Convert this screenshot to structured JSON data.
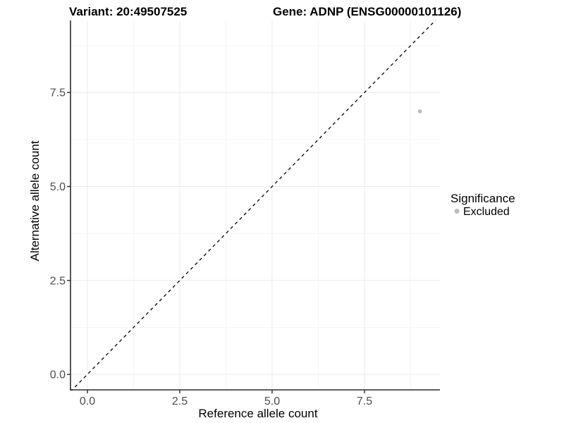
{
  "chart_data": {
    "type": "scatter",
    "title_left": "Variant: 20:49507525",
    "title_right": "Gene: ADNP (ENSG00000101126)",
    "xlabel": "Reference allele count",
    "ylabel": "Alternative allele count",
    "x_ticks": [
      0.0,
      2.5,
      5.0,
      7.5
    ],
    "y_ticks": [
      0.0,
      2.5,
      5.0,
      7.5
    ],
    "x_tick_labels": [
      "0.0",
      "2.5",
      "5.0",
      "7.5"
    ],
    "y_tick_labels": [
      "0.0",
      "2.5",
      "5.0",
      "7.5"
    ],
    "xlim": [
      -0.46,
      9.54
    ],
    "ylim": [
      -0.41,
      9.4
    ],
    "grid": true,
    "points": [
      {
        "x": 9,
        "y": 7,
        "series": "Excluded",
        "color": "#bdbdbd"
      }
    ],
    "reference_line": {
      "kind": "identity y=x",
      "style": "dashed",
      "color": "#000000"
    },
    "legend": {
      "position": "right",
      "title": "Significance",
      "items": [
        {
          "label": "Excluded",
          "color": "#bdbdbd"
        }
      ]
    }
  }
}
